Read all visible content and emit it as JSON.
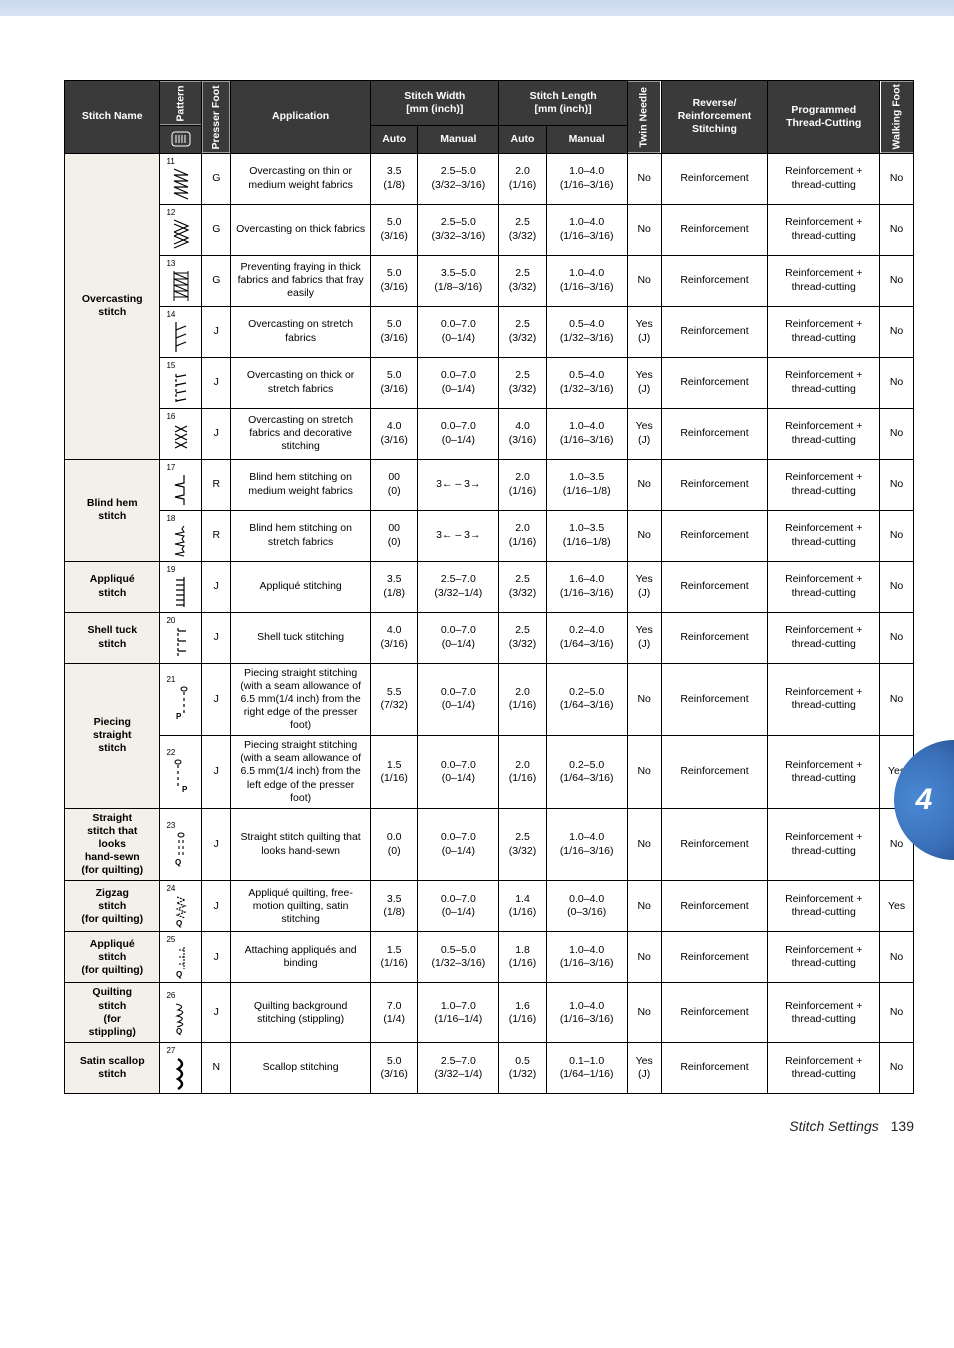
{
  "header": {
    "stitch_name": "Stitch Name",
    "pattern": "Pattern",
    "presser_foot": "Presser Foot",
    "application": "Application",
    "stitch_width": "Stitch Width\n[mm (inch)]",
    "stitch_length": "Stitch Length\n[mm (inch)]",
    "twin_needle": "Twin Needle",
    "reverse": "Reverse/\nReinforcement\nStitching",
    "programmed": "Programmed\nThread-Cutting",
    "walking_foot": "Walking Foot",
    "auto": "Auto",
    "manual": "Manual"
  },
  "names": {
    "overcasting": "Overcasting\nstitch",
    "blindhem": "Blind hem\nstitch",
    "applique": "Appliqué\nstitch",
    "shelltuck": "Shell tuck\nstitch",
    "piecing": "Piecing\nstraight\nstitch",
    "straightlooks": "Straight\nstitch that\nlooks\nhand-sewn\n(for quilting)",
    "zigzag": "Zigzag\nstitch\n(for quilting)",
    "appliqueq": "Appliqué\nstitch\n(for quilting)",
    "quilting": "Quilting\nstitch\n(for\nstippling)",
    "satin": "Satin scallop\nstitch"
  },
  "rows": [
    {
      "n": "11",
      "pf": "G",
      "app": "Overcasting on thin or medium weight fabrics",
      "wa": "3.5\n(1/8)",
      "wm": "2.5–5.0\n(3/32–3/16)",
      "la": "2.0\n(1/16)",
      "lm": "1.0–4.0\n(1/16–3/16)",
      "tn": "No",
      "rv": "Reinforcement",
      "pg": "Reinforcement +\nthread-cutting",
      "wf": "No"
    },
    {
      "n": "12",
      "pf": "G",
      "app": "Overcasting on thick fabrics",
      "wa": "5.0\n(3/16)",
      "wm": "2.5–5.0\n(3/32–3/16)",
      "la": "2.5\n(3/32)",
      "lm": "1.0–4.0\n(1/16–3/16)",
      "tn": "No",
      "rv": "Reinforcement",
      "pg": "Reinforcement +\nthread-cutting",
      "wf": "No"
    },
    {
      "n": "13",
      "pf": "G",
      "app": "Preventing fraying in thick fabrics and fabrics that fray easily",
      "wa": "5.0\n(3/16)",
      "wm": "3.5–5.0\n(1/8–3/16)",
      "la": "2.5\n(3/32)",
      "lm": "1.0–4.0\n(1/16–3/16)",
      "tn": "No",
      "rv": "Reinforcement",
      "pg": "Reinforcement +\nthread-cutting",
      "wf": "No"
    },
    {
      "n": "14",
      "pf": "J",
      "app": "Overcasting on stretch fabrics",
      "wa": "5.0\n(3/16)",
      "wm": "0.0–7.0\n(0–1/4)",
      "la": "2.5\n(3/32)",
      "lm": "0.5–4.0\n(1/32–3/16)",
      "tn": "Yes\n(J)",
      "rv": "Reinforcement",
      "pg": "Reinforcement +\nthread-cutting",
      "wf": "No"
    },
    {
      "n": "15",
      "pf": "J",
      "app": "Overcasting on thick or stretch fabrics",
      "wa": "5.0\n(3/16)",
      "wm": "0.0–7.0\n(0–1/4)",
      "la": "2.5\n(3/32)",
      "lm": "0.5–4.0\n(1/32–3/16)",
      "tn": "Yes\n(J)",
      "rv": "Reinforcement",
      "pg": "Reinforcement +\nthread-cutting",
      "wf": "No"
    },
    {
      "n": "16",
      "pf": "J",
      "app": "Overcasting on stretch fabrics and decorative stitching",
      "wa": "4.0\n(3/16)",
      "wm": "0.0–7.0\n(0–1/4)",
      "la": "4.0\n(3/16)",
      "lm": "1.0–4.0\n(1/16–3/16)",
      "tn": "Yes\n(J)",
      "rv": "Reinforcement",
      "pg": "Reinforcement +\nthread-cutting",
      "wf": "No"
    },
    {
      "n": "17",
      "pf": "R",
      "app": "Blind hem stitching on medium weight fabrics",
      "wa": "00\n(0)",
      "wm": "3← – 3→",
      "la": "2.0\n(1/16)",
      "lm": "1.0–3.5\n(1/16–1/8)",
      "tn": "No",
      "rv": "Reinforcement",
      "pg": "Reinforcement +\nthread-cutting",
      "wf": "No"
    },
    {
      "n": "18",
      "pf": "R",
      "app": "Blind hem stitching on stretch fabrics",
      "wa": "00\n(0)",
      "wm": "3← – 3→",
      "la": "2.0\n(1/16)",
      "lm": "1.0–3.5\n(1/16–1/8)",
      "tn": "No",
      "rv": "Reinforcement",
      "pg": "Reinforcement +\nthread-cutting",
      "wf": "No"
    },
    {
      "n": "19",
      "pf": "J",
      "app": "Appliqué stitching",
      "wa": "3.5\n(1/8)",
      "wm": "2.5–7.0\n(3/32–1/4)",
      "la": "2.5\n(3/32)",
      "lm": "1.6–4.0\n(1/16–3/16)",
      "tn": "Yes\n(J)",
      "rv": "Reinforcement",
      "pg": "Reinforcement +\nthread-cutting",
      "wf": "No"
    },
    {
      "n": "20",
      "pf": "J",
      "app": "Shell tuck stitching",
      "wa": "4.0\n(3/16)",
      "wm": "0.0–7.0\n(0–1/4)",
      "la": "2.5\n(3/32)",
      "lm": "0.2–4.0\n(1/64–3/16)",
      "tn": "Yes\n(J)",
      "rv": "Reinforcement",
      "pg": "Reinforcement +\nthread-cutting",
      "wf": "No"
    },
    {
      "n": "21",
      "pf": "J",
      "app": "Piecing straight stitching (with a seam allowance of 6.5 mm(1/4 inch) from the right edge of the presser foot)",
      "wa": "5.5\n(7/32)",
      "wm": "0.0–7.0\n(0–1/4)",
      "la": "2.0\n(1/16)",
      "lm": "0.2–5.0\n(1/64–3/16)",
      "tn": "No",
      "rv": "Reinforcement",
      "pg": "Reinforcement +\nthread-cutting",
      "wf": "No"
    },
    {
      "n": "22",
      "pf": "J",
      "app": "Piecing straight stitching (with a seam allowance of 6.5 mm(1/4 inch) from the left edge of the presser foot)",
      "wa": "1.5\n(1/16)",
      "wm": "0.0–7.0\n(0–1/4)",
      "la": "2.0\n(1/16)",
      "lm": "0.2–5.0\n(1/64–3/16)",
      "tn": "No",
      "rv": "Reinforcement",
      "pg": "Reinforcement +\nthread-cutting",
      "wf": "Yes"
    },
    {
      "n": "23",
      "pf": "J",
      "app": "Straight stitch quilting that looks hand-sewn",
      "wa": "0.0\n(0)",
      "wm": "0.0–7.0\n(0–1/4)",
      "la": "2.5\n(3/32)",
      "lm": "1.0–4.0\n(1/16–3/16)",
      "tn": "No",
      "rv": "Reinforcement",
      "pg": "Reinforcement +\nthread-cutting",
      "wf": "No"
    },
    {
      "n": "24",
      "pf": "J",
      "app": "Appliqué quilting, free-motion quilting, satin stitching",
      "wa": "3.5\n(1/8)",
      "wm": "0.0–7.0\n(0–1/4)",
      "la": "1.4\n(1/16)",
      "lm": "0.0–4.0\n(0–3/16)",
      "tn": "No",
      "rv": "Reinforcement",
      "pg": "Reinforcement +\nthread-cutting",
      "wf": "Yes"
    },
    {
      "n": "25",
      "pf": "J",
      "app": "Attaching appliqués and binding",
      "wa": "1.5\n(1/16)",
      "wm": "0.5–5.0\n(1/32–3/16)",
      "la": "1.8\n(1/16)",
      "lm": "1.0–4.0\n(1/16–3/16)",
      "tn": "No",
      "rv": "Reinforcement",
      "pg": "Reinforcement +\nthread-cutting",
      "wf": "No"
    },
    {
      "n": "26",
      "pf": "J",
      "app": "Quilting background stitching (stippling)",
      "wa": "7.0\n(1/4)",
      "wm": "1.0–7.0\n(1/16–1/4)",
      "la": "1.6\n(1/16)",
      "lm": "1.0–4.0\n(1/16–3/16)",
      "tn": "No",
      "rv": "Reinforcement",
      "pg": "Reinforcement +\nthread-cutting",
      "wf": "No"
    },
    {
      "n": "27",
      "pf": "N",
      "app": "Scallop stitching",
      "wa": "5.0\n(3/16)",
      "wm": "2.5–7.0\n(3/32–1/4)",
      "la": "0.5\n(1/32)",
      "lm": "0.1–1.0\n(1/64–1/16)",
      "tn": "Yes\n(J)",
      "rv": "Reinforcement",
      "pg": "Reinforcement +\nthread-cutting",
      "wf": "No"
    }
  ],
  "footer": {
    "text": "Stitch Settings",
    "page": "139"
  },
  "tab": "4"
}
